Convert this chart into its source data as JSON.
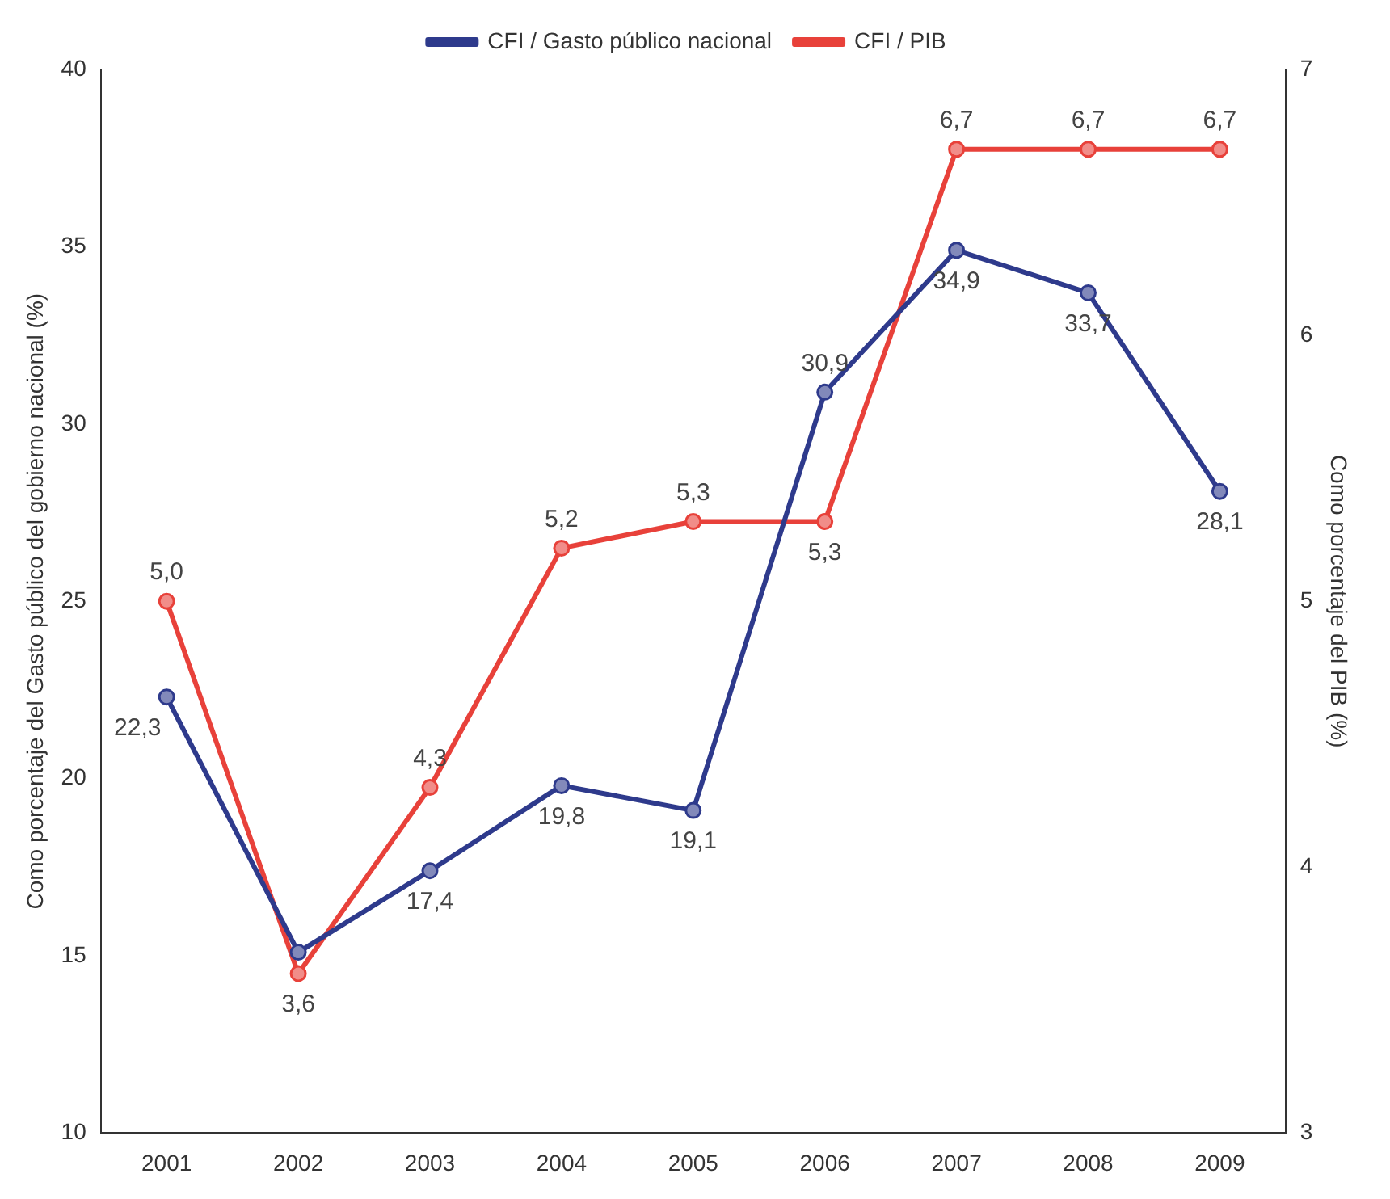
{
  "chart_data": {
    "type": "line",
    "categories": [
      "2001",
      "2002",
      "2003",
      "2004",
      "2005",
      "2006",
      "2007",
      "2008",
      "2009"
    ],
    "series": [
      {
        "name": "CFI / Gasto público nacional",
        "color": "#2e3a8c",
        "values": [
          22.3,
          15.1,
          17.4,
          19.8,
          19.1,
          30.9,
          34.9,
          33.7,
          28.1
        ],
        "value_labels": [
          "22,3",
          null,
          "17,4",
          "19,8",
          "19,1",
          "30,9",
          "34,9",
          "33,7",
          "28,1"
        ]
      },
      {
        "name": "CFI / PIB",
        "color": "#e8413a",
        "axis": "y2",
        "values": [
          5.0,
          3.6,
          4.3,
          5.2,
          5.3,
          5.3,
          6.7,
          6.7,
          6.7
        ],
        "value_labels": [
          "5,0",
          "3,6",
          "4,3",
          "5,2",
          "5,3",
          "5,3",
          "6,7",
          "6,7",
          "6,7"
        ]
      }
    ],
    "ylabel": "Como porcentaje del Gasto público del gobierno nacional (%)",
    "y2label": "Como porcentaje del PIB (%)",
    "ylim": [
      10,
      40
    ],
    "yticks": [
      10,
      15,
      20,
      25,
      30,
      35,
      40
    ],
    "y2lim": [
      3,
      7
    ],
    "y2ticks": [
      3,
      4,
      5,
      6,
      7
    ],
    "grid": false,
    "legend": "top",
    "marker": "circle",
    "line_style": "solid"
  }
}
